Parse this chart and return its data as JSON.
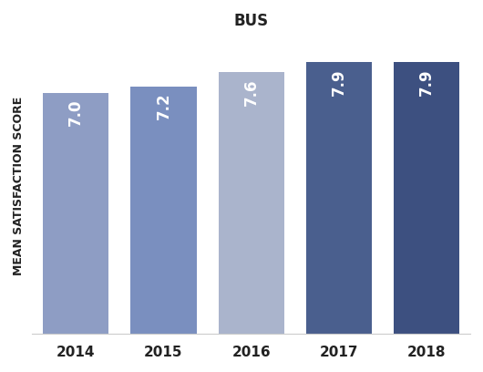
{
  "title": "BUS",
  "ylabel": "MEAN SATISFACTION SCORE",
  "categories": [
    "2014",
    "2015",
    "2016",
    "2017",
    "2018"
  ],
  "values": [
    7.0,
    7.2,
    7.6,
    7.9,
    7.9
  ],
  "bar_colors": [
    "#8e9dc4",
    "#7a8fbf",
    "#aab4cc",
    "#4a5f8e",
    "#3d5080"
  ],
  "label_color": "#ffffff",
  "ylim": [
    0,
    8.6
  ],
  "bar_width": 0.75,
  "title_fontsize": 12,
  "ylabel_fontsize": 9,
  "tick_fontsize": 11,
  "label_fontsize": 12,
  "background_color": "#ffffff"
}
